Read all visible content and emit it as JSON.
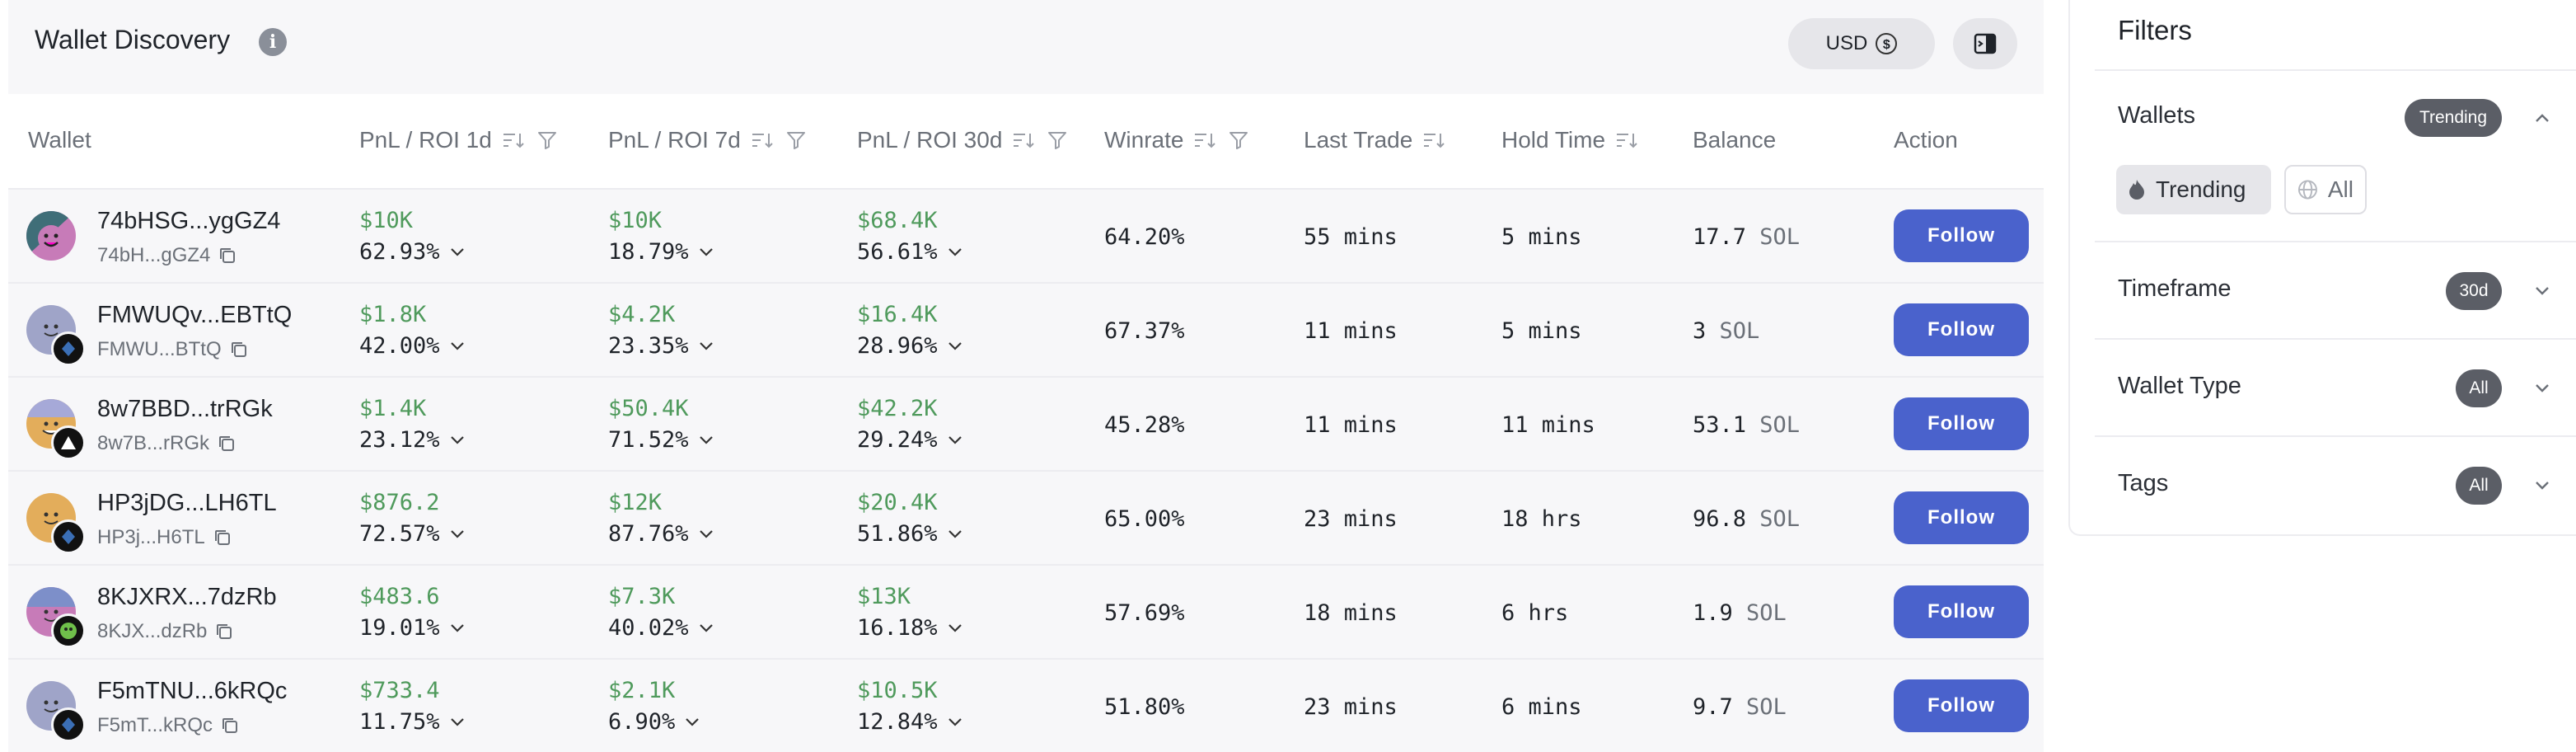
{
  "page": {
    "title": "Wallet Discovery",
    "info_glyph": "i",
    "currency_label": "USD",
    "currency_icon_glyph": "$"
  },
  "table": {
    "headers": {
      "wallet": "Wallet",
      "pnl1d": "PnL / ROI 1d",
      "pnl7d": "PnL / ROI 7d",
      "pnl30d": "PnL / ROI 30d",
      "winrate": "Winrate",
      "last_trade": "Last Trade",
      "hold_time": "Hold Time",
      "balance": "Balance",
      "action": "Action"
    },
    "follow_label": "Follow",
    "rows": [
      {
        "name": "74bHSG...ygGZ4",
        "addr": "74bH...gGZ4",
        "pnl1d": "$10K",
        "roi1d": "62.93%",
        "pnl7d": "$10K",
        "roi7d": "18.79%",
        "pnl30d": "$68.4K",
        "roi30d": "56.61%",
        "winrate": "64.20%",
        "last_trade": "55 mins",
        "hold_time": "5 mins",
        "balance": "17.7",
        "unit": "SOL"
      },
      {
        "name": "FMWUQv...EBTtQ",
        "addr": "FMWU...BTtQ",
        "pnl1d": "$1.8K",
        "roi1d": "42.00%",
        "pnl7d": "$4.2K",
        "roi7d": "23.35%",
        "pnl30d": "$16.4K",
        "roi30d": "28.96%",
        "winrate": "67.37%",
        "last_trade": "11 mins",
        "hold_time": "5 mins",
        "balance": "3",
        "unit": "SOL"
      },
      {
        "name": "8w7BBD...trRGk",
        "addr": "8w7B...rRGk",
        "pnl1d": "$1.4K",
        "roi1d": "23.12%",
        "pnl7d": "$50.4K",
        "roi7d": "71.52%",
        "pnl30d": "$42.2K",
        "roi30d": "29.24%",
        "winrate": "45.28%",
        "last_trade": "11 mins",
        "hold_time": "11 mins",
        "balance": "53.1",
        "unit": "SOL"
      },
      {
        "name": "HP3jDG...LH6TL",
        "addr": "HP3j...H6TL",
        "pnl1d": "$876.2",
        "roi1d": "72.57%",
        "pnl7d": "$12K",
        "roi7d": "87.76%",
        "pnl30d": "$20.4K",
        "roi30d": "51.86%",
        "winrate": "65.00%",
        "last_trade": "23 mins",
        "hold_time": "18 hrs",
        "balance": "96.8",
        "unit": "SOL"
      },
      {
        "name": "8KJXRX...7dzRb",
        "addr": "8KJX...dzRb",
        "pnl1d": "$483.6",
        "roi1d": "19.01%",
        "pnl7d": "$7.3K",
        "roi7d": "40.02%",
        "pnl30d": "$13K",
        "roi30d": "16.18%",
        "winrate": "57.69%",
        "last_trade": "18 mins",
        "hold_time": "6 hrs",
        "balance": "1.9",
        "unit": "SOL"
      },
      {
        "name": "F5mTNU...6kRQc",
        "addr": "F5mT...kRQc",
        "pnl1d": "$733.4",
        "roi1d": "11.75%",
        "pnl7d": "$2.1K",
        "roi7d": "6.90%",
        "pnl30d": "$10.5K",
        "roi30d": "12.84%",
        "winrate": "51.80%",
        "last_trade": "23 mins",
        "hold_time": "6 mins",
        "balance": "9.7",
        "unit": "SOL"
      }
    ]
  },
  "filters": {
    "title": "Filters",
    "sections": [
      {
        "label": "Wallets",
        "badge": "Trending",
        "expanded": true
      },
      {
        "label": "Timeframe",
        "badge": "30d",
        "expanded": false
      },
      {
        "label": "Wallet Type",
        "badge": "All",
        "expanded": false
      },
      {
        "label": "Tags",
        "badge": "All",
        "expanded": false
      }
    ],
    "wallet_options": [
      {
        "label": "Trending",
        "selected": true
      },
      {
        "label": "All",
        "selected": false
      }
    ]
  },
  "colors": {
    "accent": "#4a62cc",
    "positive": "#4f9a5c",
    "row_bg": "#f7f7f9",
    "badge_bg": "#5b5e66"
  }
}
